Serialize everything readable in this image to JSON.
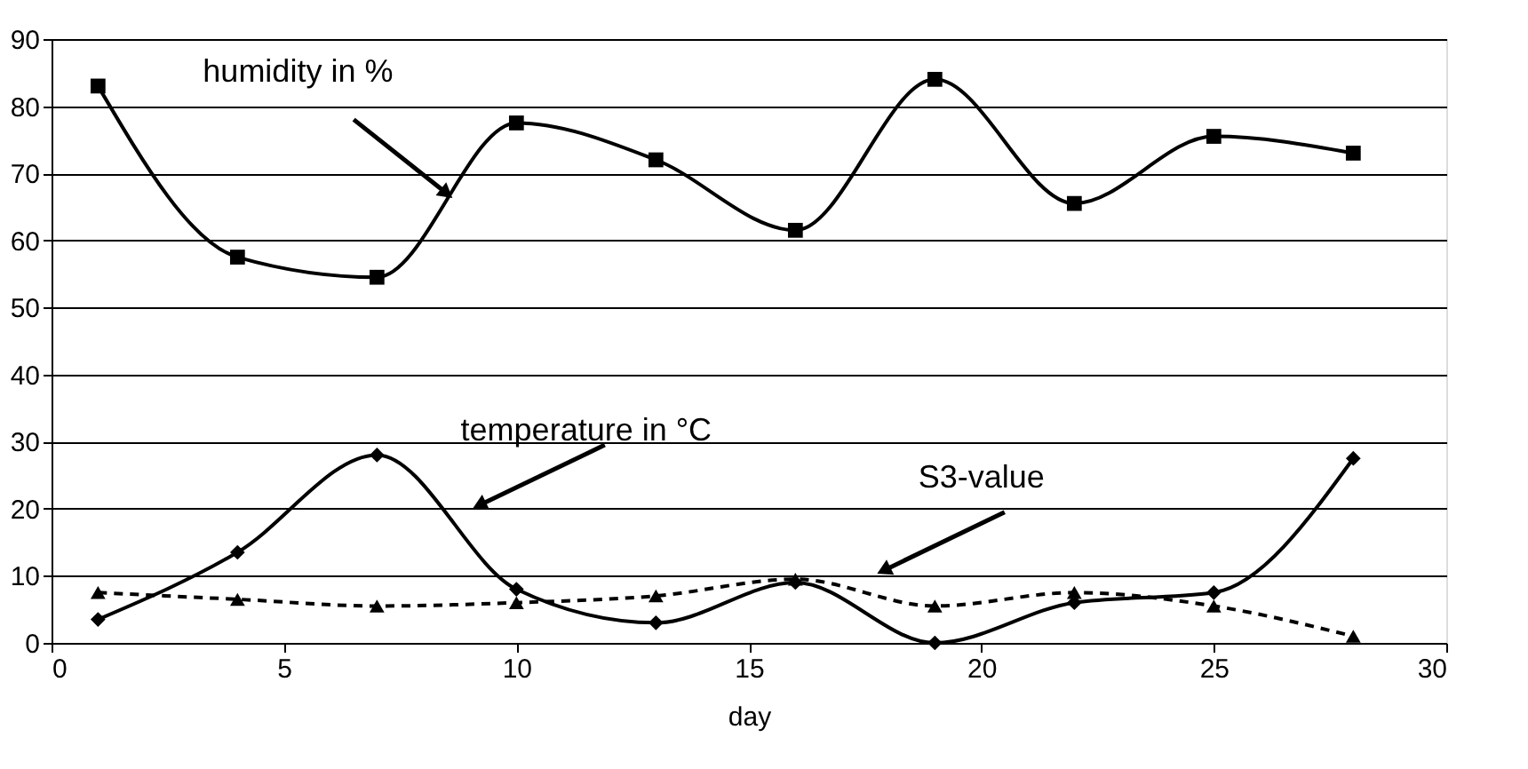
{
  "chart_data": {
    "type": "line",
    "xlabel": "day",
    "x": [
      1,
      4,
      7,
      10,
      13,
      16,
      19,
      22,
      25,
      28
    ],
    "series": [
      {
        "color": "#000000",
        "marker": "square",
        "line_style": "solid",
        "values": [
          83,
          57.5,
          54.5,
          77.5,
          72,
          61.5,
          84,
          65.5,
          75.5,
          73
        ]
      },
      {
        "color": "#000000",
        "marker": "diamond",
        "line_style": "solid",
        "values": [
          3.5,
          13.5,
          28,
          8,
          3,
          9,
          0,
          6,
          7.5,
          27.5
        ]
      },
      {
        "color": "#000000",
        "marker": "triangle",
        "line_style": "dashed",
        "values": [
          7.5,
          6.5,
          5.5,
          6,
          7,
          9.5,
          5.5,
          7.5,
          5.5,
          1
        ]
      }
    ],
    "annotations": [
      {
        "text": "humidity in %",
        "x": 8.5,
        "y": 67
      },
      "temperature in °C",
      "S3-value"
    ],
    "xlim": [
      0,
      30
    ],
    "xticks": [
      0,
      5,
      10,
      15,
      20,
      25,
      30
    ],
    "ylim": [
      0,
      90
    ],
    "yticks": [
      0,
      10,
      20,
      30,
      40,
      50,
      60,
      70,
      80,
      90
    ],
    "grid": "y"
  }
}
